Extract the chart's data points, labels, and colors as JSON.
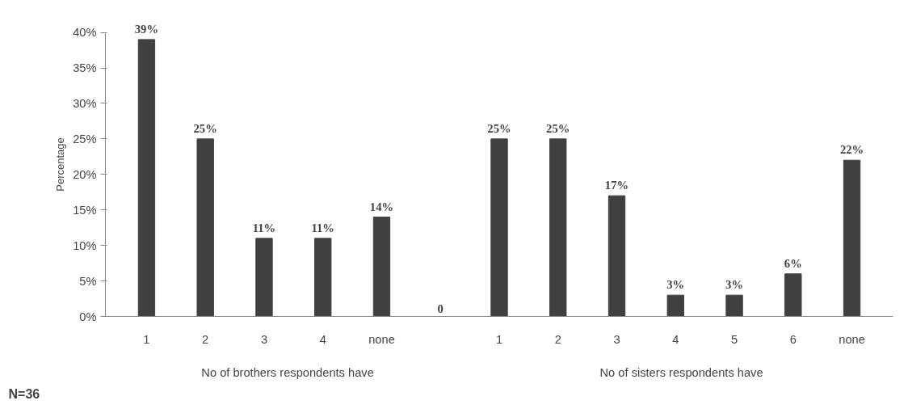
{
  "chart_data": {
    "type": "bar",
    "ylabel": "Percentage",
    "categories": [
      "1",
      "2",
      "3",
      "4",
      "none",
      null,
      "1",
      "2",
      "3",
      "4",
      "5",
      "6",
      "none"
    ],
    "values": [
      39,
      25,
      11,
      11,
      14,
      0,
      25,
      25,
      17,
      3,
      3,
      6,
      22
    ],
    "value_labels": [
      "39%",
      "25%",
      "11%",
      "11%",
      "14%",
      "0",
      "25%",
      "25%",
      "17%",
      "3%",
      "3%",
      "6%",
      "22%"
    ],
    "color": "#404040",
    "ylim": [
      0,
      40
    ],
    "yticks": [
      {
        "value": 0,
        "label": "0%"
      },
      {
        "value": 5,
        "label": "5%"
      },
      {
        "value": 10,
        "label": "10%"
      },
      {
        "value": 15,
        "label": "15%"
      },
      {
        "value": 20,
        "label": "20%"
      },
      {
        "value": 25,
        "label": "25%"
      },
      {
        "value": 30,
        "label": "30%"
      },
      {
        "value": 35,
        "label": "35%"
      },
      {
        "value": 40,
        "label": "40%"
      }
    ],
    "grid": false,
    "legend": false,
    "annotations": [
      "N=36",
      "No of brothers respondents have",
      "No of sisters respondents have"
    ]
  }
}
